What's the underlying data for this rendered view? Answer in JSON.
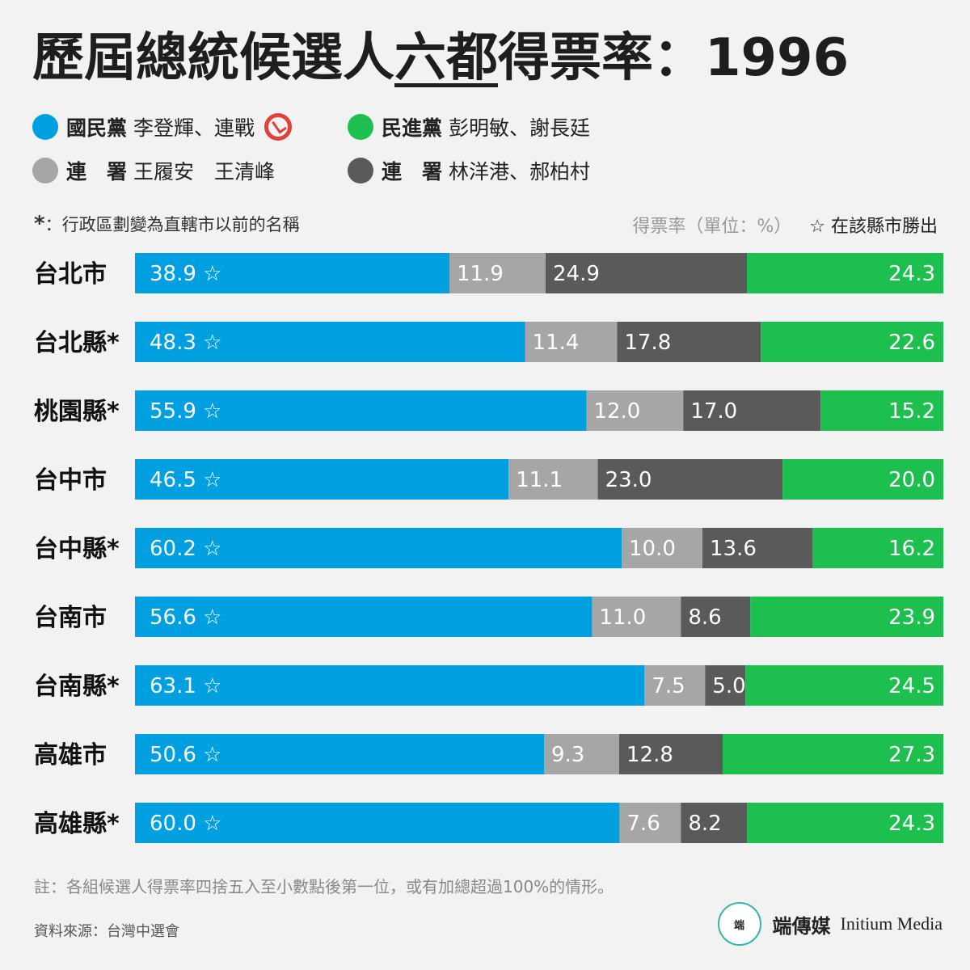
{
  "title": {
    "before": "歷屆總統候選人",
    "highlight": "六都",
    "after": "得票率：1996"
  },
  "legend": [
    {
      "party": "國民黨",
      "candidates": "李登輝、連戰",
      "color": "#009fdf",
      "winner_icon": "ballot-stamp-icon"
    },
    {
      "party": "民進黨",
      "candidates": "彭明敏、謝長廷",
      "color": "#1dbf4e"
    },
    {
      "party": "連　署",
      "candidates": "王履安　王清峰",
      "color": "#a6a6a6"
    },
    {
      "party": "連　署",
      "candidates": "林洋港、郝柏村",
      "color": "#5a5a5a"
    }
  ],
  "notes": {
    "asterisk_mark": "*",
    "asterisk_text": "：行政區劃變為直轄市以前的名稱",
    "unit": "得票率（單位：%）",
    "star_legend": "☆ 在該縣市勝出",
    "footnote": "註：各組候選人得票率四捨五入至小數點後第一位，或有加總超過100%的情形。",
    "source": "資料來源：台灣中選會"
  },
  "brand": {
    "logo_text": "端",
    "name_zh": "端傳媒",
    "name_en": "Initium Media"
  },
  "chart_data": {
    "type": "bar",
    "orientation": "horizontal",
    "stacked": true,
    "categories": [
      "台北市",
      "台北縣*",
      "桃園縣*",
      "台中市",
      "台中縣*",
      "台南市",
      "台南縣*",
      "高雄市",
      "高雄縣*"
    ],
    "series": [
      {
        "name": "國民黨",
        "color": "#009fdf",
        "values": [
          38.9,
          48.3,
          55.9,
          46.5,
          60.2,
          56.6,
          63.1,
          50.6,
          60.0
        ]
      },
      {
        "name": "連　署",
        "color": "#a6a6a6",
        "values": [
          11.9,
          11.4,
          12.0,
          11.1,
          10.0,
          11.0,
          7.5,
          9.3,
          7.6
        ]
      },
      {
        "name": "連　署",
        "color": "#5a5a5a",
        "values": [
          24.9,
          17.8,
          17.0,
          23.0,
          13.6,
          8.6,
          5.0,
          12.8,
          8.2
        ]
      },
      {
        "name": "民進黨",
        "color": "#1dbf4e",
        "values": [
          24.3,
          22.6,
          15.2,
          20.0,
          16.2,
          23.9,
          24.5,
          27.3,
          24.3
        ]
      }
    ],
    "winner_star": "☆",
    "winners": [
      0,
      0,
      0,
      0,
      0,
      0,
      0,
      0,
      0
    ],
    "data_labels": true,
    "legend_placement": "top",
    "grid": false
  }
}
